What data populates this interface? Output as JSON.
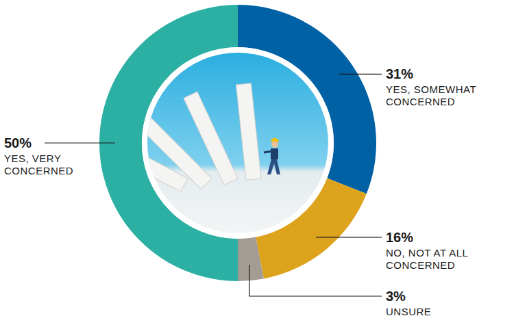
{
  "chart_data": {
    "type": "pie",
    "categories": [
      "YES, SOMEWHAT CONCERNED",
      "NO, NOT AT ALL CONCERNED",
      "UNSURE",
      "YES, VERY CONCERNED"
    ],
    "values": [
      31,
      16,
      3,
      50
    ],
    "value_labels": [
      "31%",
      "16%",
      "3%",
      "50%"
    ],
    "colors": [
      "#0061a4",
      "#dea31d",
      "#a39c92",
      "#2db0a4"
    ],
    "data_labels": true
  }
}
